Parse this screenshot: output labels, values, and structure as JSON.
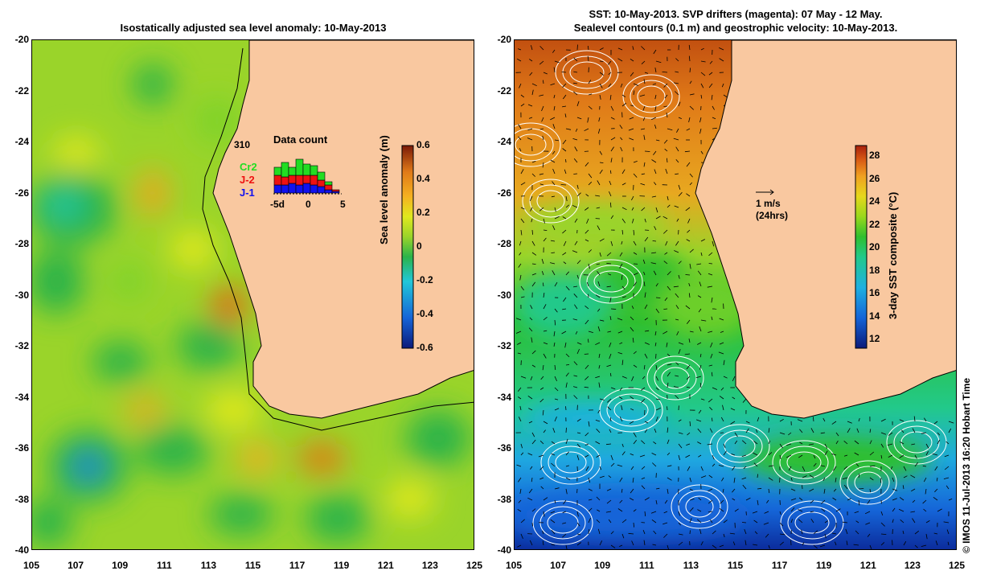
{
  "left": {
    "title": "Isostatically adjusted sea level anomaly: 10-May-2013",
    "colorbar_label": "Sea level anomaly (m)",
    "colorbar_ticks": [
      "0.6",
      "0.4",
      "0.2",
      "0",
      "-0.2",
      "-0.4",
      "-0.6"
    ],
    "data_count": {
      "title": "Data count",
      "total": "310",
      "legend": [
        {
          "label": "Cr2",
          "color": "#22dd22"
        },
        {
          "label": "J-2",
          "color": "#ee1111"
        },
        {
          "label": "J-1",
          "color": "#1111ee"
        }
      ],
      "x_ticks": [
        "-5d",
        "0",
        "5"
      ],
      "bars": [
        {
          "j1": 0.25,
          "j2": 0.3,
          "cr2": 0.25
        },
        {
          "j1": 0.25,
          "j2": 0.25,
          "cr2": 0.45
        },
        {
          "j1": 0.3,
          "j2": 0.25,
          "cr2": 0.25
        },
        {
          "j1": 0.25,
          "j2": 0.3,
          "cr2": 0.5
        },
        {
          "j1": 0.3,
          "j2": 0.25,
          "cr2": 0.35
        },
        {
          "j1": 0.25,
          "j2": 0.3,
          "cr2": 0.3
        },
        {
          "j1": 0.2,
          "j2": 0.2,
          "cr2": 0.25
        },
        {
          "j1": 0.1,
          "j2": 0.15,
          "cr2": 0.1
        },
        {
          "j1": 0.05,
          "j2": 0.05,
          "cr2": 0.0
        }
      ]
    }
  },
  "right": {
    "title_line1": "SST: 10-May-2013. SVP drifters (magenta): 07 May - 12 May.",
    "title_line2": "Sealevel contours (0.1 m) and geostrophic velocity: 10-May-2013.",
    "colorbar_label": "3-day SST composite (°C)",
    "colorbar_ticks": [
      "28",
      "26",
      "24",
      "22",
      "20",
      "18",
      "16",
      "14",
      "12"
    ],
    "scale_arrow_line1": "1 m/s",
    "scale_arrow_line2": "(24hrs)"
  },
  "axes": {
    "lat_ticks": [
      "-20",
      "-22",
      "-24",
      "-26",
      "-28",
      "-30",
      "-32",
      "-34",
      "-36",
      "-38",
      "-40"
    ],
    "lon_ticks": [
      "105",
      "107",
      "109",
      "111",
      "113",
      "115",
      "117",
      "119",
      "121",
      "123",
      "125"
    ]
  },
  "credit": "© IMOS 11-Jul-2013 16:20 Hobart Time",
  "colors": {
    "land": "#f9c8a0",
    "sla_colormap": [
      "#0b1a7a",
      "#1565d8",
      "#22c7d8",
      "#2ab34a",
      "#7fd32a",
      "#e0e81e",
      "#f5b020",
      "#e07a18",
      "#a8300e",
      "#7a1a08"
    ],
    "sst_colormap": [
      "#0b1a7a",
      "#1565d8",
      "#1fb0e0",
      "#22c98a",
      "#2fbf2f",
      "#9ad81c",
      "#e6d81c",
      "#f0a020",
      "#d85a14",
      "#a8200c"
    ]
  }
}
